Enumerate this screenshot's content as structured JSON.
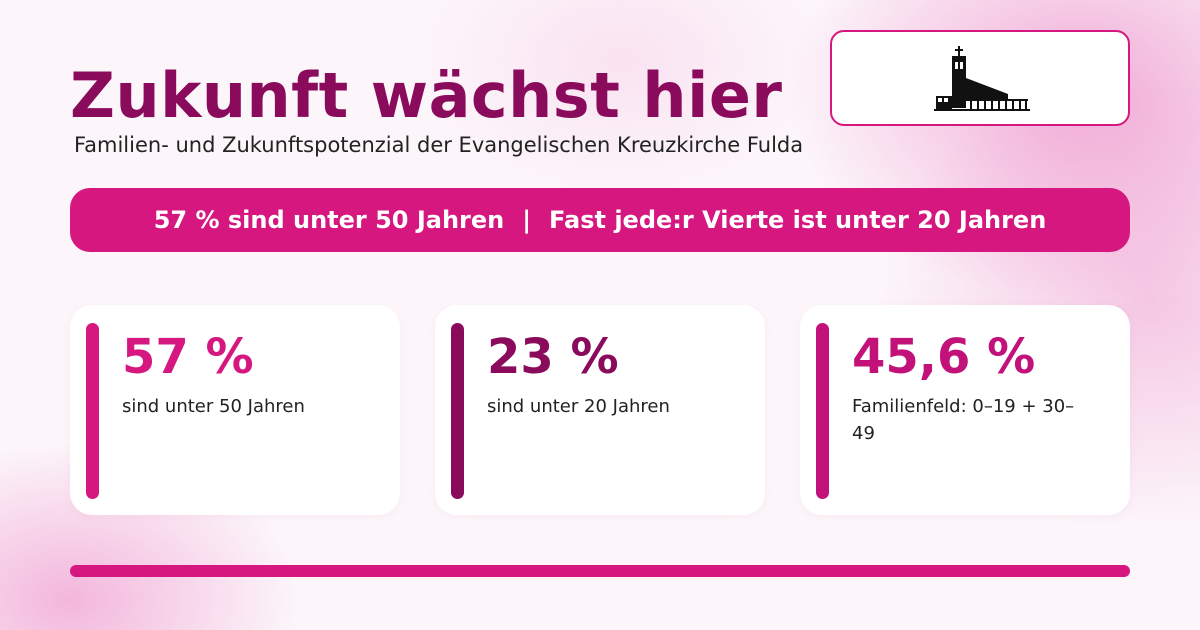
{
  "header": {
    "title": "Zukunft wächst hier",
    "subtitle": "Familien- und Zukunftspotenzial der Evangelischen Kreuzkirche Fulda"
  },
  "logo": {
    "icon": "church-icon"
  },
  "banner": {
    "left_text": "57 % sind unter 50 Jahren",
    "separator": "|",
    "right_text": "Fast jede:r Vierte ist unter 20 Jahren"
  },
  "cards": [
    {
      "value": "57 %",
      "label": "sind unter 50 Jahren",
      "accent": "#d6177f"
    },
    {
      "value": "23 %",
      "label": "sind unter 20 Jahren",
      "accent": "#8a0a5c"
    },
    {
      "value": "45,6 %",
      "label": "Familienfeld: 0–19 + 30–49",
      "accent": "#c2127a"
    }
  ],
  "colors": {
    "primary": "#d6177f",
    "dark": "#8a0a5c",
    "title": "#8a0a5c",
    "text": "#222222",
    "background": "#fcf6fa"
  }
}
